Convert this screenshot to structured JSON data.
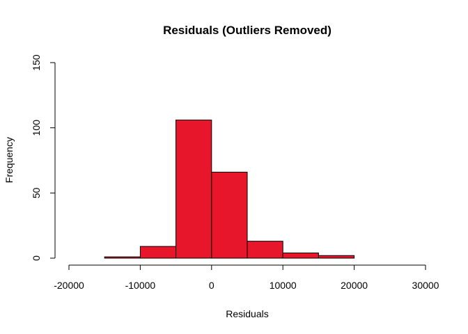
{
  "chart_data": {
    "type": "bar",
    "title": "Residuals (Outliers Removed)",
    "xlabel": "Residuals",
    "ylabel": "Frequency",
    "bar_color": "#E8162A",
    "xlim": [
      -20000,
      30000
    ],
    "ylim": [
      0,
      150
    ],
    "x_ticks": [
      -20000,
      -10000,
      0,
      10000,
      20000,
      30000
    ],
    "y_ticks": [
      0,
      50,
      100,
      150
    ],
    "x_tick_labels": [
      "-20000",
      "-10000",
      "0",
      "10000",
      "20000",
      "30000"
    ],
    "y_tick_labels": [
      "0",
      "50",
      "100",
      "150"
    ],
    "bins": [
      {
        "start": -15000,
        "end": -10000,
        "count": 1
      },
      {
        "start": -10000,
        "end": -5000,
        "count": 9
      },
      {
        "start": -5000,
        "end": 0,
        "count": 106
      },
      {
        "start": 0,
        "end": 5000,
        "count": 66
      },
      {
        "start": 5000,
        "end": 10000,
        "count": 13
      },
      {
        "start": 10000,
        "end": 15000,
        "count": 4
      },
      {
        "start": 15000,
        "end": 20000,
        "count": 2
      }
    ]
  }
}
